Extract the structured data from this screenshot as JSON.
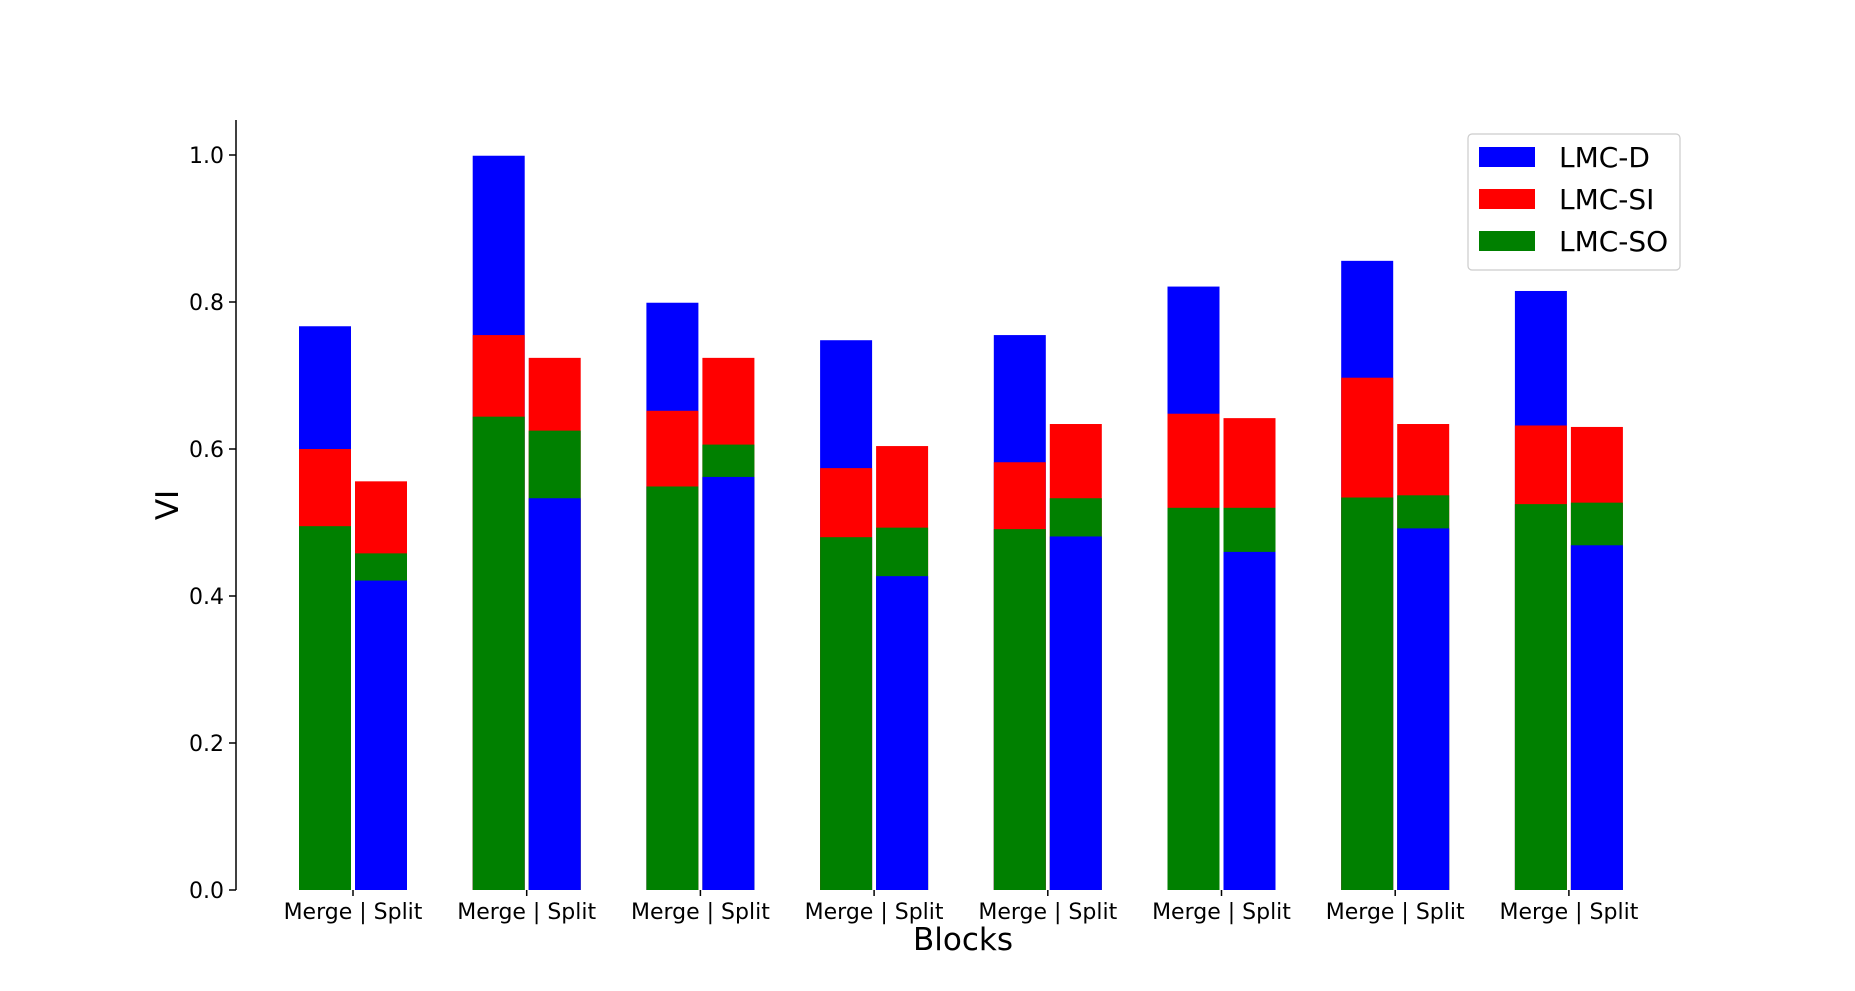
{
  "chart_data": {
    "type": "bar",
    "stacked": true,
    "xlabel": "Blocks",
    "ylabel": "VI",
    "ylim": [
      0,
      1.05
    ],
    "yticks": [
      "0.0",
      "0.2",
      "0.4",
      "0.6",
      "0.8",
      "1.0"
    ],
    "grid": false,
    "legend_position": "top-right",
    "group_tick_label": "Merge | Split",
    "legend": [
      {
        "name": "LMC-D",
        "color": "#0000ff"
      },
      {
        "name": "LMC-SI",
        "color": "#ff0000"
      },
      {
        "name": "LMC-SO",
        "color": "#008000"
      }
    ],
    "groups": [
      {
        "label": "Merge | Split",
        "merge": {
          "LMC-SO": 0.495,
          "LMC-SI": 0.6,
          "LMC-D": 0.767
        },
        "split": {
          "LMC-D": 0.421,
          "LMC-SO": 0.458,
          "LMC-SI": 0.556
        }
      },
      {
        "label": "Merge | Split",
        "merge": {
          "LMC-SO": 0.644,
          "LMC-SI": 0.755,
          "LMC-D": 0.999
        },
        "split": {
          "LMC-D": 0.533,
          "LMC-SO": 0.625,
          "LMC-SI": 0.724
        }
      },
      {
        "label": "Merge | Split",
        "merge": {
          "LMC-SO": 0.549,
          "LMC-SI": 0.652,
          "LMC-D": 0.799
        },
        "split": {
          "LMC-D": 0.562,
          "LMC-SO": 0.606,
          "LMC-SI": 0.724
        }
      },
      {
        "label": "Merge | Split",
        "merge": {
          "LMC-SO": 0.48,
          "LMC-SI": 0.574,
          "LMC-D": 0.748
        },
        "split": {
          "LMC-D": 0.427,
          "LMC-SO": 0.493,
          "LMC-SI": 0.604
        }
      },
      {
        "label": "Merge | Split",
        "merge": {
          "LMC-SO": 0.491,
          "LMC-SI": 0.582,
          "LMC-D": 0.755
        },
        "split": {
          "LMC-D": 0.481,
          "LMC-SO": 0.533,
          "LMC-SI": 0.634
        }
      },
      {
        "label": "Merge | Split",
        "merge": {
          "LMC-SO": 0.52,
          "LMC-SI": 0.648,
          "LMC-D": 0.821
        },
        "split": {
          "LMC-D": 0.46,
          "LMC-SO": 0.52,
          "LMC-SI": 0.642
        }
      },
      {
        "label": "Merge | Split",
        "merge": {
          "LMC-SO": 0.534,
          "LMC-SI": 0.697,
          "LMC-D": 0.856
        },
        "split": {
          "LMC-D": 0.492,
          "LMC-SO": 0.537,
          "LMC-SI": 0.634
        }
      },
      {
        "label": "Merge | Split",
        "merge": {
          "LMC-SO": 0.525,
          "LMC-SI": 0.632,
          "LMC-D": 0.815
        },
        "split": {
          "LMC-D": 0.469,
          "LMC-SO": 0.527,
          "LMC-SI": 0.63
        }
      }
    ]
  }
}
